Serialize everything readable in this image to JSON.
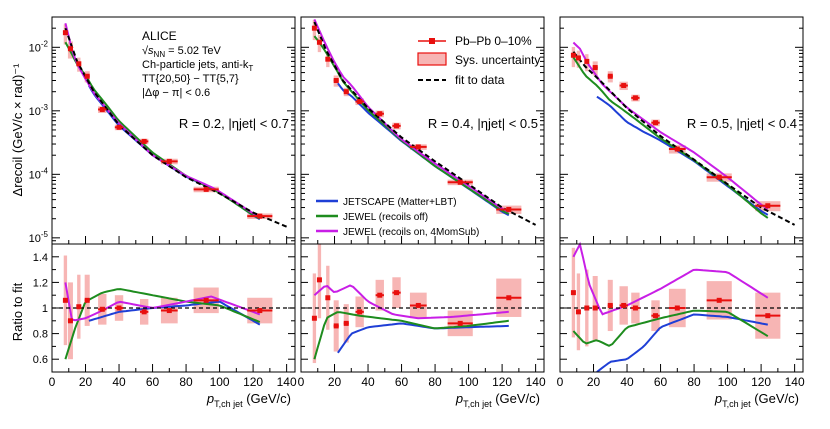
{
  "collab": "ALICE",
  "energy_text": "s",
  "energy_sub": "NN",
  "energy_value": " = 5.02 TeV",
  "jets_text": "Ch-particle jets, anti-k",
  "jets_sub": "T",
  "tt_text": "TT{20,50} − TT{5,7}",
  "dphi_text": "|Δφ − π| < 0.6",
  "ylabel_top": "Δrecoil (GeV/c × rad)⁻¹",
  "ylabel_bottom": "Ratio to fit",
  "xlabel_main": "p",
  "xlabel_sub": "T,ch jet",
  "xlabel_unit": " (GeV/c)",
  "legend": {
    "data": "Pb–Pb 0–10%",
    "sys": "Sys. uncertainty",
    "fit": "fit to data",
    "jetscape": "JETSCAPE (Matter+LBT)",
    "jewel_off": "JEWEL (recoils off)",
    "jewel_on": "JEWEL (recoils on, 4MomSub)"
  },
  "colors": {
    "data": "#e8100e",
    "sys": "#f7b5b4",
    "fit": "#000000",
    "jetscape": "#1f3fd6",
    "jewel_off": "#1e8c1e",
    "jewel_on": "#c81ee6"
  },
  "chart_data": [
    {
      "type": "scatter",
      "title": "R = 0.2, |ηjet| < 0.7",
      "xlabel": "pT,ch jet (GeV/c)",
      "xlim": [
        0,
        145
      ],
      "ylim_top": [
        8e-06,
        0.03
      ],
      "ylim_ratio": [
        0.5,
        1.5
      ],
      "data": [
        {
          "x": 8,
          "w": 2,
          "y": 0.017,
          "ratio": 1.06
        },
        {
          "x": 11,
          "w": 3,
          "y": 0.0095,
          "ratio": 0.9
        },
        {
          "x": 16,
          "w": 2,
          "y": 0.0055,
          "ratio": 1.01
        },
        {
          "x": 21,
          "w": 3,
          "y": 0.0035,
          "ratio": 1.06
        },
        {
          "x": 30,
          "w": 5,
          "y": 0.00105,
          "ratio": 0.99
        },
        {
          "x": 40,
          "w": 5,
          "y": 0.00055,
          "ratio": 1.0
        },
        {
          "x": 55,
          "w": 5,
          "y": 0.00033,
          "ratio": 0.97
        },
        {
          "x": 70,
          "w": 10,
          "y": 0.00016,
          "ratio": 0.98
        },
        {
          "x": 92,
          "w": 15,
          "y": 5.8e-05,
          "ratio": 1.06
        },
        {
          "x": 124,
          "w": 15,
          "y": 2.2e-05,
          "ratio": 0.98
        }
      ],
      "sys_half": [
        0.35,
        0.3,
        0.25,
        0.2,
        0.12,
        0.1,
        0.1,
        0.1,
        0.1,
        0.1
      ],
      "fit": {
        "x": [
          8,
          15,
          25,
          40,
          60,
          80,
          100,
          120,
          140
        ],
        "y": [
          0.02,
          0.006,
          0.002,
          0.0006,
          0.0002,
          9e-05,
          5e-05,
          2.5e-05,
          1.5e-05
        ]
      },
      "models": {
        "jetscape": {
          "x": [
            22,
            40,
            60,
            80,
            100,
            124
          ],
          "ratio": [
            0.9,
            0.97,
            1.0,
            1.02,
            1.05,
            0.87
          ]
        },
        "jewel_off": {
          "x": [
            8,
            14,
            20,
            30,
            40,
            60,
            80,
            100,
            124
          ],
          "ratio": [
            0.6,
            0.85,
            1.05,
            1.12,
            1.15,
            1.1,
            1.05,
            1.02,
            0.89
          ]
        },
        "jewel_on": {
          "x": [
            8,
            12,
            20,
            30,
            40,
            60,
            80,
            95,
            124
          ],
          "ratio": [
            1.2,
            0.9,
            0.92,
            0.98,
            1.05,
            1.0,
            1.05,
            1.09,
            0.95
          ]
        }
      }
    },
    {
      "type": "scatter",
      "title": "R = 0.4, |ηjet| < 0.5",
      "xlabel": "pT,ch jet (GeV/c)",
      "xlim": [
        0,
        145
      ],
      "ylim_top": [
        8e-06,
        0.03
      ],
      "ylim_ratio": [
        0.5,
        1.5
      ],
      "data": [
        {
          "x": 8,
          "w": 2,
          "y": 0.02,
          "ratio": 0.92
        },
        {
          "x": 11,
          "w": 2,
          "y": 0.012,
          "ratio": 1.22
        },
        {
          "x": 16,
          "w": 2,
          "y": 0.0065,
          "ratio": 1.08
        },
        {
          "x": 21,
          "w": 3,
          "y": 0.003,
          "ratio": 0.86
        },
        {
          "x": 27,
          "w": 3,
          "y": 0.002,
          "ratio": 0.88
        },
        {
          "x": 35,
          "w": 5,
          "y": 0.0014,
          "ratio": 0.97
        },
        {
          "x": 47,
          "w": 5,
          "y": 0.0009,
          "ratio": 1.1
        },
        {
          "x": 57,
          "w": 5,
          "y": 0.00058,
          "ratio": 1.12
        },
        {
          "x": 70,
          "w": 10,
          "y": 0.00027,
          "ratio": 1.02
        },
        {
          "x": 95,
          "w": 15,
          "y": 7.5e-05,
          "ratio": 0.88
        },
        {
          "x": 124,
          "w": 15,
          "y": 2.8e-05,
          "ratio": 1.08
        }
      ],
      "sys_half": [
        0.35,
        0.3,
        0.25,
        0.2,
        0.15,
        0.12,
        0.12,
        0.12,
        0.1,
        0.1,
        0.15
      ],
      "fit": {
        "x": [
          8,
          15,
          25,
          40,
          60,
          80,
          100,
          120,
          140
        ],
        "y": [
          0.025,
          0.009,
          0.003,
          0.0011,
          0.00038,
          0.00016,
          7e-05,
          3e-05,
          1.6e-05
        ]
      },
      "models": {
        "jetscape": {
          "x": [
            22,
            30,
            40,
            60,
            80,
            100,
            124
          ],
          "ratio": [
            0.65,
            0.8,
            0.85,
            0.88,
            0.84,
            0.85,
            0.86
          ]
        },
        "jewel_off": {
          "x": [
            8,
            15,
            22,
            35,
            60,
            80,
            100,
            124
          ],
          "ratio": [
            0.6,
            0.92,
            0.97,
            0.94,
            0.9,
            0.84,
            0.86,
            0.9
          ]
        },
        "jewel_on": {
          "x": [
            8,
            15,
            20,
            30,
            40,
            55,
            70,
            90,
            124
          ],
          "ratio": [
            1.1,
            1.18,
            1.12,
            1.18,
            1.05,
            0.95,
            0.92,
            0.93,
            0.97
          ]
        }
      }
    },
    {
      "type": "scatter",
      "title": "R = 0.5, |ηjet| < 0.4",
      "xlabel": "pT,ch jet (GeV/c)",
      "xlim": [
        0,
        145
      ],
      "ylim_top": [
        8e-06,
        0.03
      ],
      "ylim_ratio": [
        0.5,
        1.5
      ],
      "data": [
        {
          "x": 8,
          "w": 2,
          "y": 0.0075,
          "ratio": 1.12
        },
        {
          "x": 11,
          "w": 2,
          "y": 0.0068,
          "ratio": 0.97
        },
        {
          "x": 16,
          "w": 2,
          "y": 0.006,
          "ratio": 1.0
        },
        {
          "x": 21,
          "w": 3,
          "y": 0.0048,
          "ratio": 1.0
        },
        {
          "x": 30,
          "w": 3,
          "y": 0.0035,
          "ratio": 1.02
        },
        {
          "x": 38,
          "w": 5,
          "y": 0.0025,
          "ratio": 1.02
        },
        {
          "x": 45,
          "w": 5,
          "y": 0.0016,
          "ratio": 1.0
        },
        {
          "x": 57,
          "w": 5,
          "y": 0.00065,
          "ratio": 0.94
        },
        {
          "x": 70,
          "w": 10,
          "y": 0.00025,
          "ratio": 1.0
        },
        {
          "x": 95,
          "w": 15,
          "y": 9e-05,
          "ratio": 1.06
        },
        {
          "x": 124,
          "w": 15,
          "y": 3.2e-05,
          "ratio": 0.94
        }
      ],
      "sys_half": [
        0.35,
        0.3,
        0.3,
        0.25,
        0.2,
        0.15,
        0.12,
        0.12,
        0.15,
        0.15,
        0.18
      ],
      "fit": {
        "x": [
          8,
          15,
          25,
          40,
          60,
          80,
          100,
          120,
          140
        ],
        "y": [
          0.0085,
          0.005,
          0.0028,
          0.0011,
          0.0004,
          0.00017,
          7e-05,
          3e-05,
          1.6e-05
        ]
      },
      "models": {
        "jetscape": {
          "x": [
            22,
            30,
            40,
            50,
            60,
            80,
            100,
            124
          ],
          "ratio": [
            0.5,
            0.58,
            0.6,
            0.7,
            0.85,
            0.95,
            0.93,
            0.87
          ]
        },
        "jewel_off": {
          "x": [
            8,
            15,
            22,
            30,
            40,
            60,
            80,
            100,
            124
          ],
          "ratio": [
            0.82,
            0.72,
            0.75,
            0.7,
            0.85,
            0.92,
            0.98,
            0.97,
            0.78
          ]
        },
        "jewel_on": {
          "x": [
            8,
            12,
            17,
            25,
            40,
            60,
            80,
            100,
            124
          ],
          "ratio": [
            1.4,
            1.5,
            1.2,
            0.95,
            1.02,
            1.15,
            1.3,
            1.28,
            1.08
          ]
        }
      }
    }
  ]
}
